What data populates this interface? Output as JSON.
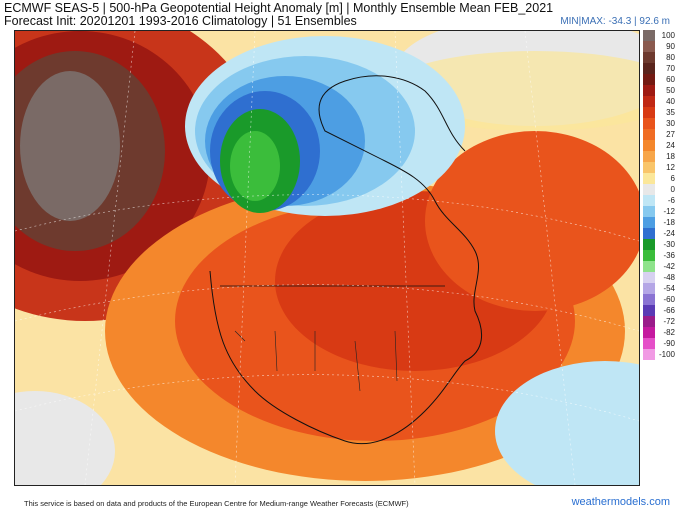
{
  "header": {
    "line1": "ECMWF SEAS-5 | 500-hPa Geopotential Height Anomaly [m] | Monthly Ensemble Mean FEB_2021",
    "line2": "Forecast Init: 20201201     1993-2016 Climatology | 51 Ensembles",
    "minmax": "MIN|MAX: -34.3 | 92.6 m"
  },
  "legend": {
    "levels": [
      {
        "label": "100",
        "color": "#7a6a66"
      },
      {
        "label": "90",
        "color": "#8a5a4e"
      },
      {
        "label": "80",
        "color": "#6e3a2e"
      },
      {
        "label": "70",
        "color": "#5a241c"
      },
      {
        "label": "60",
        "color": "#731a12"
      },
      {
        "label": "50",
        "color": "#9e1a12"
      },
      {
        "label": "40",
        "color": "#c02814"
      },
      {
        "label": "35",
        "color": "#d83a14"
      },
      {
        "label": "30",
        "color": "#e9541c"
      },
      {
        "label": "27",
        "color": "#f06c24"
      },
      {
        "label": "24",
        "color": "#f4872c"
      },
      {
        "label": "18",
        "color": "#f7a64a"
      },
      {
        "label": "12",
        "color": "#f9c56a"
      },
      {
        "label": "6",
        "color": "#fbe79a"
      },
      {
        "label": "0",
        "color": "#e8e8e8"
      },
      {
        "label": "-6",
        "color": "#bfe6f5"
      },
      {
        "label": "-12",
        "color": "#86c9ef"
      },
      {
        "label": "-18",
        "color": "#4d9ee3"
      },
      {
        "label": "-24",
        "color": "#2f6fd0"
      },
      {
        "label": "-30",
        "color": "#1a9a2a"
      },
      {
        "label": "-36",
        "color": "#3bbd3b"
      },
      {
        "label": "-42",
        "color": "#8ee38b"
      },
      {
        "label": "-48",
        "color": "#d7d1f1"
      },
      {
        "label": "-54",
        "color": "#b4a6e6"
      },
      {
        "label": "-60",
        "color": "#8a73d3"
      },
      {
        "label": "-66",
        "color": "#5a3ab5"
      },
      {
        "label": "-72",
        "color": "#9a1c8a"
      },
      {
        "label": "-82",
        "color": "#c5199f"
      },
      {
        "label": "-90",
        "color": "#e54fc8"
      },
      {
        "label": "-100",
        "color": "#f19ae4"
      }
    ]
  },
  "footer": {
    "text": "This service is based on data and products of the European Centre for Medium-range Weather Forecasts (ECMWF)",
    "brand": "weathermodels.com"
  }
}
